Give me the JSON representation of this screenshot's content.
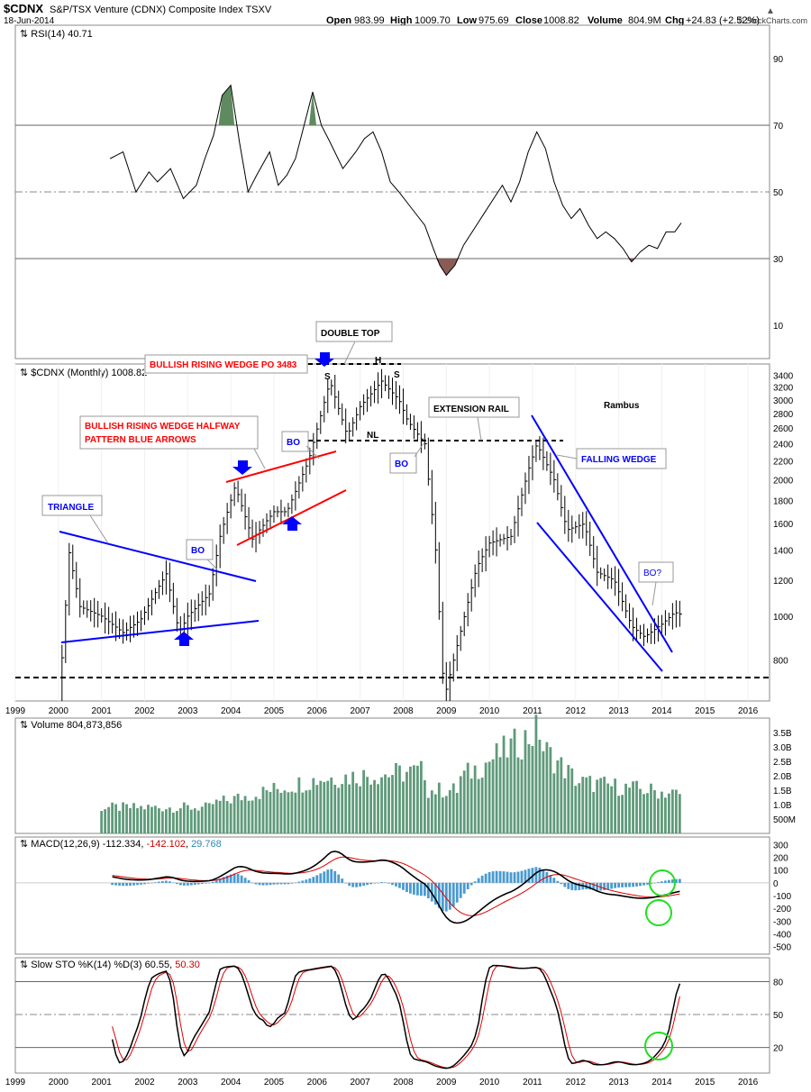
{
  "header": {
    "symbol": "$CDNX",
    "description": "S&P/TSX Venture (CDNX) Composite Index TSXV",
    "date": "18-Jun-2014",
    "open_label": "Open",
    "open": "983.99",
    "high_label": "High",
    "high": "1009.70",
    "low_label": "Low",
    "low": "975.69",
    "close_label": "Close",
    "close": "1008.82",
    "volume_label": "Volume",
    "volume": "804.9M",
    "chg_label": "Chg",
    "chg": "+24.83 (+2.52%)",
    "watermark": "© StockCharts.com"
  },
  "colors": {
    "price_bar": "#000000",
    "trend_blue": "#0000ff",
    "trend_red": "#ff0000",
    "rsi_overbought_fill": "#5f8a5f",
    "rsi_oversold_fill": "#8a5a55",
    "volume_bar": "#5f9a7a",
    "macd_histogram": "#4a9ad0",
    "signal_red": "#e00000",
    "highlight_circle": "#22dd22",
    "rsi_value_color": "#000000",
    "macd_neg_color": "#cc0000",
    "macd_hist_color": "#2a8ab0",
    "sto_d_color": "#cc0000"
  },
  "years": [
    "1999",
    "2000",
    "2001",
    "2002",
    "2003",
    "2004",
    "2005",
    "2006",
    "2007",
    "2008",
    "2009",
    "2010",
    "2011",
    "2012",
    "2013",
    "2014",
    "2015",
    "2016"
  ],
  "rsi_panel": {
    "label": "RSI(14)",
    "value": "40.71",
    "axis_ticks": [
      90,
      70,
      50,
      30,
      10
    ],
    "overbought": 70,
    "oversold": 30
  },
  "price_panel": {
    "label": "$CDNX (Monthly)",
    "value": "1008.82",
    "axis_ticks": [
      3400,
      3200,
      3000,
      2800,
      2600,
      2400,
      2200,
      2000,
      1800,
      1600,
      1400,
      1200,
      1000,
      800
    ],
    "scale": "log",
    "annotations": {
      "triangle": "TRIANGLE",
      "wedge_halfway_line1": "BULLISH RISING WEDGE HALFWAY",
      "wedge_halfway_line2": "PATTERN BLUE ARROWS",
      "wedge_po": "BULLISH RISING WEDGE PO 3483",
      "double_top": "DOUBLE TOP",
      "extension_rail": "EXTENSION RAIL",
      "falling_wedge": "FALLING WEDGE",
      "rambus": "Rambus",
      "bo": "BO",
      "bo_q": "BO?",
      "s": "S",
      "h": "H",
      "nl": "NL"
    }
  },
  "volume_panel": {
    "label": "Volume",
    "value": "804,873,856",
    "axis_ticks": [
      "3.5B",
      "3.0B",
      "2.5B",
      "2.0B",
      "1.5B",
      "1.0B",
      "500M"
    ]
  },
  "macd_panel": {
    "label": "MACD(12,26,9)",
    "macd_value": "-112.334",
    "signal_value": "-142.102",
    "hist_value": "29.768",
    "axis_ticks": [
      300,
      200,
      100,
      0,
      -100,
      -200,
      -300,
      -400,
      -500
    ]
  },
  "sto_panel": {
    "label": "Slow STO %K(14) %D(3)",
    "k_value": "60.55",
    "d_value": "50.30",
    "axis_ticks": [
      80,
      50,
      20
    ]
  },
  "chart_data": {
    "type": "line",
    "title": "$CDNX S&P/TSX Venture (CDNX) Composite Index TSXV",
    "x_range": [
      1999.0,
      2016.5
    ],
    "price_range": [
      650,
      3600
    ],
    "price_key_points": [
      {
        "x": 2000.0,
        "y": 620
      },
      {
        "x": 2000.25,
        "y": 1380
      },
      {
        "x": 2000.5,
        "y": 1050
      },
      {
        "x": 2001.0,
        "y": 1000
      },
      {
        "x": 2001.5,
        "y": 920
      },
      {
        "x": 2001.9,
        "y": 980
      },
      {
        "x": 2002.3,
        "y": 1150
      },
      {
        "x": 2002.5,
        "y": 1240
      },
      {
        "x": 2002.8,
        "y": 920
      },
      {
        "x": 2003.0,
        "y": 1000
      },
      {
        "x": 2003.5,
        "y": 1120
      },
      {
        "x": 2003.75,
        "y": 1500
      },
      {
        "x": 2004.1,
        "y": 1940
      },
      {
        "x": 2004.5,
        "y": 1480
      },
      {
        "x": 2005.0,
        "y": 1700
      },
      {
        "x": 2005.3,
        "y": 1700
      },
      {
        "x": 2005.8,
        "y": 2200
      },
      {
        "x": 2006.3,
        "y": 3300
      },
      {
        "x": 2006.7,
        "y": 2500
      },
      {
        "x": 2007.0,
        "y": 2900
      },
      {
        "x": 2007.5,
        "y": 3300
      },
      {
        "x": 2007.9,
        "y": 3000
      },
      {
        "x": 2008.1,
        "y": 2700
      },
      {
        "x": 2008.5,
        "y": 2400
      },
      {
        "x": 2008.75,
        "y": 1400
      },
      {
        "x": 2008.95,
        "y": 660
      },
      {
        "x": 2009.3,
        "y": 900
      },
      {
        "x": 2009.7,
        "y": 1280
      },
      {
        "x": 2010.0,
        "y": 1450
      },
      {
        "x": 2010.5,
        "y": 1500
      },
      {
        "x": 2010.9,
        "y": 2100
      },
      {
        "x": 2011.1,
        "y": 2400
      },
      {
        "x": 2011.5,
        "y": 2000
      },
      {
        "x": 2011.8,
        "y": 1550
      },
      {
        "x": 2012.2,
        "y": 1600
      },
      {
        "x": 2012.5,
        "y": 1250
      },
      {
        "x": 2012.9,
        "y": 1200
      },
      {
        "x": 2013.3,
        "y": 950
      },
      {
        "x": 2013.6,
        "y": 900
      },
      {
        "x": 2014.0,
        "y": 960
      },
      {
        "x": 2014.3,
        "y": 1020
      },
      {
        "x": 2014.45,
        "y": 1008
      }
    ],
    "rsi_series": [
      {
        "x": 2001.2,
        "y": 60
      },
      {
        "x": 2001.5,
        "y": 62
      },
      {
        "x": 2001.8,
        "y": 50
      },
      {
        "x": 2002.1,
        "y": 56
      },
      {
        "x": 2002.3,
        "y": 53
      },
      {
        "x": 2002.6,
        "y": 57
      },
      {
        "x": 2002.9,
        "y": 48
      },
      {
        "x": 2003.2,
        "y": 52
      },
      {
        "x": 2003.4,
        "y": 60
      },
      {
        "x": 2003.6,
        "y": 67
      },
      {
        "x": 2003.8,
        "y": 79
      },
      {
        "x": 2004.0,
        "y": 82
      },
      {
        "x": 2004.2,
        "y": 65
      },
      {
        "x": 2004.4,
        "y": 50
      },
      {
        "x": 2004.6,
        "y": 55
      },
      {
        "x": 2004.9,
        "y": 62
      },
      {
        "x": 2005.1,
        "y": 52
      },
      {
        "x": 2005.3,
        "y": 55
      },
      {
        "x": 2005.5,
        "y": 60
      },
      {
        "x": 2005.7,
        "y": 70
      },
      {
        "x": 2005.9,
        "y": 80
      },
      {
        "x": 2006.1,
        "y": 70
      },
      {
        "x": 2006.3,
        "y": 65
      },
      {
        "x": 2006.6,
        "y": 57
      },
      {
        "x": 2006.9,
        "y": 62
      },
      {
        "x": 2007.1,
        "y": 66
      },
      {
        "x": 2007.3,
        "y": 68
      },
      {
        "x": 2007.5,
        "y": 62
      },
      {
        "x": 2007.7,
        "y": 53
      },
      {
        "x": 2007.9,
        "y": 50
      },
      {
        "x": 2008.2,
        "y": 45
      },
      {
        "x": 2008.5,
        "y": 40
      },
      {
        "x": 2008.7,
        "y": 33
      },
      {
        "x": 2008.85,
        "y": 28
      },
      {
        "x": 2009.0,
        "y": 25
      },
      {
        "x": 2009.2,
        "y": 28
      },
      {
        "x": 2009.4,
        "y": 34
      },
      {
        "x": 2009.7,
        "y": 40
      },
      {
        "x": 2009.9,
        "y": 44
      },
      {
        "x": 2010.1,
        "y": 48
      },
      {
        "x": 2010.3,
        "y": 52
      },
      {
        "x": 2010.5,
        "y": 47
      },
      {
        "x": 2010.7,
        "y": 53
      },
      {
        "x": 2010.9,
        "y": 62
      },
      {
        "x": 2011.1,
        "y": 68
      },
      {
        "x": 2011.3,
        "y": 63
      },
      {
        "x": 2011.5,
        "y": 53
      },
      {
        "x": 2011.7,
        "y": 46
      },
      {
        "x": 2011.9,
        "y": 42
      },
      {
        "x": 2012.1,
        "y": 45
      },
      {
        "x": 2012.3,
        "y": 40
      },
      {
        "x": 2012.5,
        "y": 36
      },
      {
        "x": 2012.7,
        "y": 38
      },
      {
        "x": 2012.9,
        "y": 36
      },
      {
        "x": 2013.1,
        "y": 33
      },
      {
        "x": 2013.3,
        "y": 29
      },
      {
        "x": 2013.5,
        "y": 32
      },
      {
        "x": 2013.7,
        "y": 34
      },
      {
        "x": 2013.9,
        "y": 33
      },
      {
        "x": 2014.1,
        "y": 38
      },
      {
        "x": 2014.3,
        "y": 38
      },
      {
        "x": 2014.45,
        "y": 40.71
      }
    ]
  }
}
